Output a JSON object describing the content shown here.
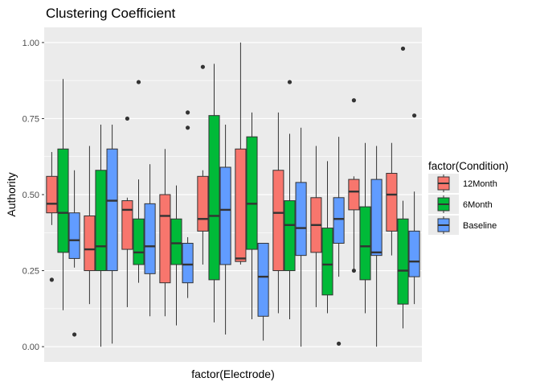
{
  "chart_data": {
    "type": "box",
    "title": "Clustering Coefficient",
    "xlabel": "factor(Electrode)",
    "ylabel": "Authority",
    "ylim": [
      -0.05,
      1.05
    ],
    "yticks": [
      0.0,
      0.25,
      0.5,
      0.75,
      1.0
    ],
    "ytick_labels": [
      "0.00",
      "0.25",
      "0.50",
      "0.75",
      "1.00"
    ],
    "x_tick_labels_visible": false,
    "grid": true,
    "legend": {
      "title": "factor(Condition)",
      "position": "right",
      "entries": [
        {
          "name": "12Month",
          "color": "#F8766D"
        },
        {
          "name": "6Month",
          "color": "#00BA38"
        },
        {
          "name": "Baseline",
          "color": "#619CFF"
        }
      ]
    },
    "colors": {
      "12Month": "#F8766D",
      "6Month": "#00BA38",
      "Baseline": "#619CFF",
      "panel": "#EBEBEB",
      "grid": "#FFFFFF"
    },
    "groups": [
      {
        "boxes": [
          {
            "cond": "12Month",
            "min": 0.4,
            "q1": 0.44,
            "median": 0.47,
            "q3": 0.56,
            "max": 0.64,
            "outliers": [
              0.22
            ]
          },
          {
            "cond": "6Month",
            "min": 0.12,
            "q1": 0.31,
            "median": 0.44,
            "q3": 0.65,
            "max": 0.88,
            "outliers": []
          },
          {
            "cond": "Baseline",
            "min": 0.26,
            "q1": 0.29,
            "median": 0.35,
            "q3": 0.44,
            "max": 0.58,
            "outliers": [
              0.04
            ]
          }
        ]
      },
      {
        "boxes": [
          {
            "cond": "12Month",
            "min": 0.14,
            "q1": 0.25,
            "median": 0.32,
            "q3": 0.43,
            "max": 0.66,
            "outliers": []
          },
          {
            "cond": "6Month",
            "min": 0.0,
            "q1": 0.25,
            "median": 0.33,
            "q3": 0.58,
            "max": 0.73,
            "outliers": []
          },
          {
            "cond": "Baseline",
            "min": 0.01,
            "q1": 0.25,
            "median": 0.48,
            "q3": 0.65,
            "max": 0.73,
            "outliers": []
          }
        ]
      },
      {
        "boxes": [
          {
            "cond": "12Month",
            "min": 0.13,
            "q1": 0.32,
            "median": 0.45,
            "q3": 0.48,
            "max": 0.49,
            "outliers": [
              0.75
            ]
          },
          {
            "cond": "6Month",
            "min": 0.21,
            "q1": 0.27,
            "median": 0.31,
            "q3": 0.42,
            "max": 0.55,
            "outliers": [
              0.87
            ]
          },
          {
            "cond": "Baseline",
            "min": 0.1,
            "q1": 0.24,
            "median": 0.33,
            "q3": 0.47,
            "max": 0.6,
            "outliers": []
          }
        ]
      },
      {
        "boxes": [
          {
            "cond": "12Month",
            "min": 0.1,
            "q1": 0.21,
            "median": 0.43,
            "q3": 0.5,
            "max": 0.65,
            "outliers": []
          },
          {
            "cond": "6Month",
            "min": 0.07,
            "q1": 0.27,
            "median": 0.34,
            "q3": 0.42,
            "max": 0.53,
            "outliers": []
          },
          {
            "cond": "Baseline",
            "min": 0.16,
            "q1": 0.21,
            "median": 0.27,
            "q3": 0.34,
            "max": 0.36,
            "outliers": [
              0.72,
              0.77
            ]
          }
        ]
      },
      {
        "boxes": [
          {
            "cond": "12Month",
            "min": 0.27,
            "q1": 0.38,
            "median": 0.42,
            "q3": 0.56,
            "max": 0.58,
            "outliers": [
              0.92
            ]
          },
          {
            "cond": "6Month",
            "min": 0.08,
            "q1": 0.22,
            "median": 0.43,
            "q3": 0.76,
            "max": 0.93,
            "outliers": []
          },
          {
            "cond": "Baseline",
            "min": 0.04,
            "q1": 0.27,
            "median": 0.45,
            "q3": 0.59,
            "max": 0.73,
            "outliers": []
          }
        ]
      },
      {
        "boxes": [
          {
            "cond": "12Month",
            "min": 0.27,
            "q1": 0.28,
            "median": 0.29,
            "q3": 0.65,
            "max": 1.0,
            "outliers": []
          },
          {
            "cond": "6Month",
            "min": 0.09,
            "q1": 0.32,
            "median": 0.47,
            "q3": 0.69,
            "max": 0.77,
            "outliers": []
          },
          {
            "cond": "Baseline",
            "min": 0.02,
            "q1": 0.1,
            "median": 0.23,
            "q3": 0.34,
            "max": 0.34,
            "outliers": []
          }
        ]
      },
      {
        "boxes": [
          {
            "cond": "12Month",
            "min": 0.11,
            "q1": 0.25,
            "median": 0.44,
            "q3": 0.58,
            "max": 0.77,
            "outliers": []
          },
          {
            "cond": "6Month",
            "min": 0.09,
            "q1": 0.25,
            "median": 0.4,
            "q3": 0.48,
            "max": 0.7,
            "outliers": [
              0.87
            ]
          },
          {
            "cond": "Baseline",
            "min": 0.0,
            "q1": 0.3,
            "median": 0.39,
            "q3": 0.54,
            "max": 0.72,
            "outliers": []
          }
        ]
      },
      {
        "boxes": [
          {
            "cond": "12Month",
            "min": 0.13,
            "q1": 0.31,
            "median": 0.4,
            "q3": 0.49,
            "max": 0.66,
            "outliers": []
          },
          {
            "cond": "6Month",
            "min": 0.11,
            "q1": 0.17,
            "median": 0.27,
            "q3": 0.39,
            "max": 0.61,
            "outliers": []
          },
          {
            "cond": "Baseline",
            "min": 0.23,
            "q1": 0.34,
            "median": 0.42,
            "q3": 0.49,
            "max": 0.69,
            "outliers": [
              0.01
            ]
          }
        ]
      },
      {
        "boxes": [
          {
            "cond": "12Month",
            "min": 0.25,
            "q1": 0.45,
            "median": 0.51,
            "q3": 0.55,
            "max": 0.56,
            "outliers": [
              0.25,
              0.81
            ]
          },
          {
            "cond": "6Month",
            "min": 0.11,
            "q1": 0.22,
            "median": 0.33,
            "q3": 0.46,
            "max": 0.67,
            "outliers": []
          },
          {
            "cond": "Baseline",
            "min": 0.0,
            "q1": 0.3,
            "median": 0.31,
            "q3": 0.55,
            "max": 0.66,
            "outliers": []
          }
        ]
      },
      {
        "boxes": [
          {
            "cond": "12Month",
            "min": 0.3,
            "q1": 0.38,
            "median": 0.5,
            "q3": 0.57,
            "max": 0.67,
            "outliers": []
          },
          {
            "cond": "6Month",
            "min": 0.06,
            "q1": 0.14,
            "median": 0.25,
            "q3": 0.42,
            "max": 0.48,
            "outliers": [
              0.98
            ]
          },
          {
            "cond": "Baseline",
            "min": 0.14,
            "q1": 0.23,
            "median": 0.28,
            "q3": 0.38,
            "max": 0.51,
            "outliers": [
              0.76
            ]
          }
        ]
      }
    ]
  }
}
